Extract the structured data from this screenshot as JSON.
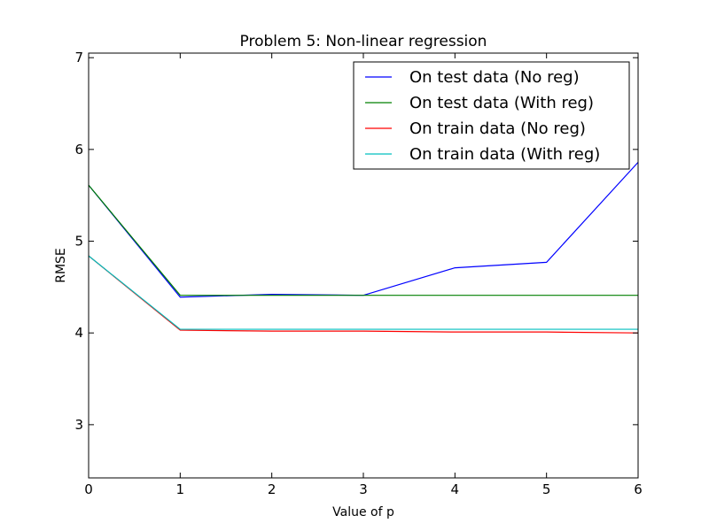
{
  "chart_data": {
    "type": "line",
    "title": "Problem 5: Non-linear regression",
    "xlabel": "Value of p",
    "ylabel": "RMSE",
    "xlim": [
      0,
      6
    ],
    "ylim": [
      2.42,
      7.05
    ],
    "xticks": [
      0,
      1,
      2,
      3,
      4,
      5,
      6
    ],
    "yticks": [
      3,
      4,
      5,
      6,
      7
    ],
    "grid": false,
    "legend_position": "top-right",
    "x": [
      0,
      1,
      2,
      3,
      4,
      5,
      6
    ],
    "series": [
      {
        "name": "On test data (No reg)",
        "color": "#0000ff",
        "values": [
          5.61,
          4.39,
          4.42,
          4.41,
          4.71,
          4.77,
          5.86
        ]
      },
      {
        "name": "On test data (With reg)",
        "color": "#008000",
        "values": [
          5.61,
          4.41,
          4.41,
          4.41,
          4.41,
          4.41,
          4.41
        ]
      },
      {
        "name": "On train data (No reg)",
        "color": "#ff0000",
        "values": [
          4.84,
          4.03,
          4.02,
          4.02,
          4.01,
          4.01,
          4.0
        ]
      },
      {
        "name": "On train data (With reg)",
        "color": "#00bfbf",
        "values": [
          4.84,
          4.04,
          4.04,
          4.04,
          4.04,
          4.04,
          4.04
        ]
      }
    ]
  }
}
